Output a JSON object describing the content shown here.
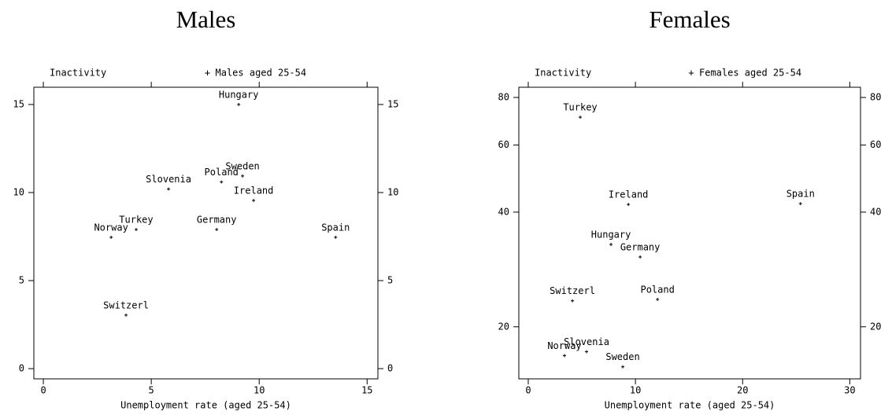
{
  "chart_data": [
    {
      "type": "scatter",
      "title": "Males",
      "x_label": "Unemployment rate (aged 25-54)",
      "y_label": "Inactivity",
      "series": [
        {
          "name": "Males aged 25-54",
          "color": "#000000",
          "labels": [
            "Hungary",
            "Sweden",
            "Poland",
            "Slovenia",
            "Ireland",
            "Turkey",
            "Germany",
            "Norway",
            "Spain",
            "Switzerl"
          ],
          "x": [
            9.05,
            9.23,
            8.25,
            5.8,
            9.74,
            4.3,
            8.03,
            3.14,
            13.54,
            3.83
          ],
          "y": [
            15.0,
            10.94,
            10.6,
            10.2,
            9.55,
            7.9,
            7.9,
            7.46,
            7.46,
            3.04
          ]
        }
      ],
      "xlim": [
        -0.44,
        15.5
      ],
      "ylim": [
        -0.58,
        15.98
      ],
      "xticks": [
        0,
        5,
        10,
        15
      ],
      "yticks": [
        0,
        5,
        10,
        15
      ],
      "ylog": false
    },
    {
      "type": "scatter",
      "title": "Females",
      "x_label": "Unemployment rate (aged 25-54)",
      "y_label": "Inactivity",
      "series": [
        {
          "name": "Females aged 25-54",
          "color": "#000000",
          "labels": [
            "Turkey",
            "Ireland",
            "Spain",
            "Hungary",
            "Germany",
            "Switzerl",
            "Poland",
            "Slovenia",
            "Norway",
            "Sweden"
          ],
          "x": [
            4.85,
            9.34,
            25.4,
            7.72,
            10.44,
            4.12,
            12.06,
            5.44,
            3.38,
            8.82
          ],
          "y": [
            71.0,
            41.9,
            42.1,
            32.9,
            30.5,
            23.4,
            23.6,
            17.2,
            16.8,
            15.7
          ]
        }
      ],
      "xlim": [
        -0.88,
        31.0
      ],
      "ylim": [
        14.6,
        85.1
      ],
      "xticks": [
        0,
        10,
        20,
        30
      ],
      "yticks": [
        20,
        40,
        60,
        80
      ],
      "ylog": true
    }
  ]
}
